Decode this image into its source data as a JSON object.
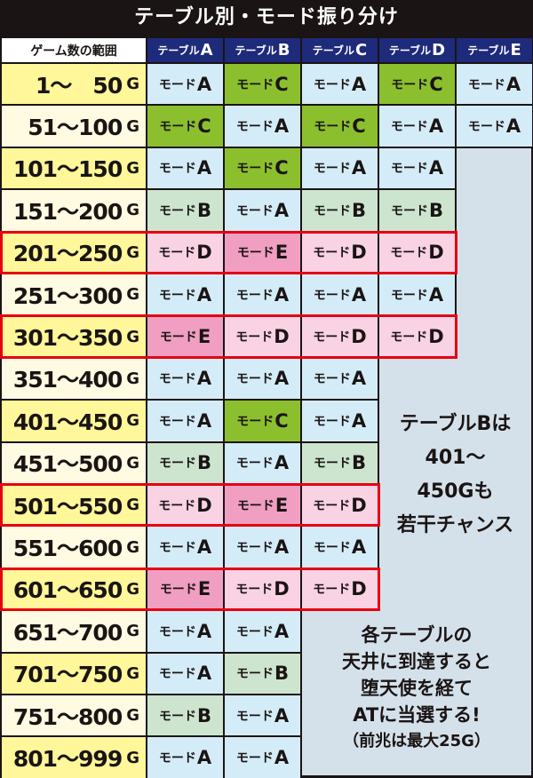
{
  "title": "テーブル別・モード振り分け",
  "header": {
    "range_label": "ゲーム数の範囲",
    "table_prefix": "テーブル",
    "tables": [
      "A",
      "B",
      "C",
      "D",
      "E"
    ],
    "header_bg": "#1e2a7a"
  },
  "mode_prefix": "モード",
  "unit": "G",
  "colors": {
    "A": "#d4ecf8",
    "B": "#cde5cf",
    "C": "#8cbf2e",
    "D": "#f9d2e4",
    "E": "#f09fc2",
    "range_yellow": "#fff799",
    "range_cream": "#fffbe2",
    "panel": "#d5e1ea",
    "highlight_border": "#e60012"
  },
  "rows": [
    {
      "range": "1～　50",
      "modes": [
        "A",
        "C",
        "A",
        "C",
        "A"
      ],
      "highlight": false
    },
    {
      "range": "51～100",
      "modes": [
        "C",
        "A",
        "C",
        "A",
        "A"
      ],
      "highlight": false
    },
    {
      "range": "101～150",
      "modes": [
        "A",
        "C",
        "A",
        "A"
      ],
      "highlight": false
    },
    {
      "range": "151～200",
      "modes": [
        "B",
        "A",
        "B",
        "B"
      ],
      "highlight": false
    },
    {
      "range": "201～250",
      "modes": [
        "D",
        "E",
        "D",
        "D"
      ],
      "highlight": true
    },
    {
      "range": "251～300",
      "modes": [
        "A",
        "A",
        "A",
        "A"
      ],
      "highlight": false
    },
    {
      "range": "301～350",
      "modes": [
        "E",
        "D",
        "D",
        "D"
      ],
      "highlight": true
    },
    {
      "range": "351～400",
      "modes": [
        "A",
        "A",
        "A"
      ],
      "highlight": false
    },
    {
      "range": "401～450",
      "modes": [
        "A",
        "C",
        "A"
      ],
      "highlight": false
    },
    {
      "range": "451～500",
      "modes": [
        "B",
        "A",
        "B"
      ],
      "highlight": false
    },
    {
      "range": "501～550",
      "modes": [
        "D",
        "E",
        "D"
      ],
      "highlight": true
    },
    {
      "range": "551～600",
      "modes": [
        "A",
        "A",
        "A"
      ],
      "highlight": false
    },
    {
      "range": "601～650",
      "modes": [
        "E",
        "D",
        "D"
      ],
      "highlight": true
    },
    {
      "range": "651～700",
      "modes": [
        "A",
        "A"
      ],
      "highlight": false
    },
    {
      "range": "701～750",
      "modes": [
        "A",
        "B"
      ],
      "highlight": false
    },
    {
      "range": "751～800",
      "modes": [
        "B",
        "A"
      ],
      "highlight": false
    },
    {
      "range": "801～999",
      "modes": [
        "A",
        "A"
      ],
      "highlight": false
    }
  ],
  "notes": {
    "note1": [
      "テーブルBは",
      "401～",
      "450Gも",
      "若干チャンス"
    ],
    "note2": [
      "各テーブルの",
      "天井に到達すると",
      "堕天使を経て",
      "ATに当選する!",
      "（前兆は最大25G）"
    ]
  }
}
